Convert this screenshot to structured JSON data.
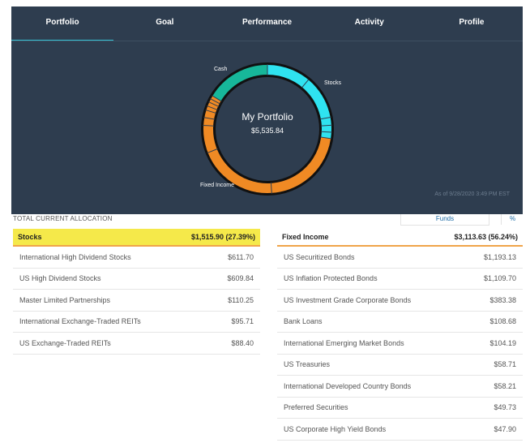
{
  "tabs": [
    {
      "label": "Portfolio",
      "active": true
    },
    {
      "label": "Goal",
      "active": false
    },
    {
      "label": "Performance",
      "active": false
    },
    {
      "label": "Activity",
      "active": false
    },
    {
      "label": "Profile",
      "active": false
    }
  ],
  "portfolio": {
    "title": "My Portfolio",
    "value": "$5,535.84",
    "as_of": "As of 9/28/2020 3:49 PM EST",
    "labels": {
      "cash": "Cash",
      "stocks": "Stocks",
      "fixed_income": "Fixed Income"
    }
  },
  "allocation": {
    "title": "TOTAL CURRENT ALLOCATION",
    "funds_label": "Funds",
    "percent_label": "%",
    "stocks": {
      "name": "Stocks",
      "total": "$1,515.90 (27.39%)",
      "items": [
        {
          "name": "International High Dividend Stocks",
          "value": "$611.70"
        },
        {
          "name": "US High Dividend Stocks",
          "value": "$609.84"
        },
        {
          "name": "Master Limited Partnerships",
          "value": "$110.25"
        },
        {
          "name": "International Exchange-Traded REITs",
          "value": "$95.71"
        },
        {
          "name": "US Exchange-Traded REITs",
          "value": "$88.40"
        }
      ]
    },
    "fixed_income": {
      "name": "Fixed Income",
      "total": "$3,113.63 (56.24%)",
      "items": [
        {
          "name": "US Securitized Bonds",
          "value": "$1,193.13"
        },
        {
          "name": "US Inflation Protected Bonds",
          "value": "$1,109.70"
        },
        {
          "name": "US Investment Grade Corporate Bonds",
          "value": "$383.38"
        },
        {
          "name": "Bank Loans",
          "value": "$108.68"
        },
        {
          "name": "International Emerging Market Bonds",
          "value": "$104.19"
        },
        {
          "name": "US Treasuries",
          "value": "$58.71"
        },
        {
          "name": "International Developed Country Bonds",
          "value": "$58.21"
        },
        {
          "name": "Preferred Securities",
          "value": "$49.73"
        },
        {
          "name": "US Corporate High Yield Bonds",
          "value": "$47.90"
        }
      ]
    },
    "colors": {
      "cash": "#17b79a",
      "stocks": "#2fe3f0",
      "fixed_income": "#f08a24"
    }
  }
}
